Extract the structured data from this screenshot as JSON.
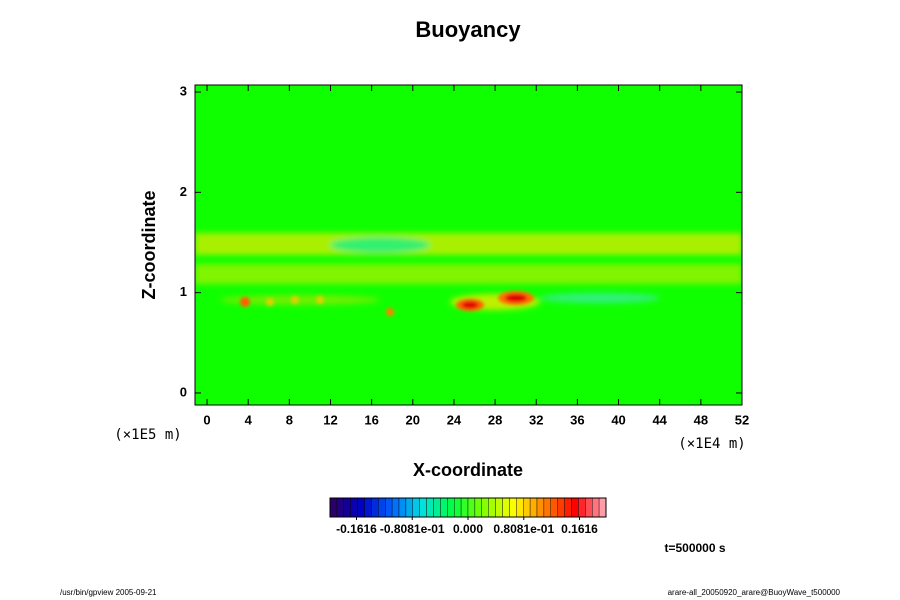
{
  "chart_data": {
    "type": "heatmap",
    "title": "Buoyancy",
    "x_label": "X-coordinate",
    "y_label": "Z-coordinate",
    "x_unit": "(×1E4 m)",
    "y_unit": "(×1E5 m)",
    "xlim": [
      -1.17,
      52
    ],
    "xticks": [
      0,
      4,
      8,
      12,
      16,
      20,
      24,
      28,
      32,
      36,
      40,
      44,
      48,
      52
    ],
    "ylim": [
      -0.12,
      3.07
    ],
    "yticks": [
      0,
      1,
      2,
      3
    ],
    "colorbar": {
      "lim": [
        -0.2,
        0.2
      ],
      "ticks": [
        {
          "value": -0.1616,
          "label": "-0.1616"
        },
        {
          "value": -0.08081,
          "label": "-0.8081e-01"
        },
        {
          "value": 0,
          "label": "0.000"
        },
        {
          "value": 0.08081,
          "label": "0.8081e-01"
        },
        {
          "value": 0.1616,
          "label": "0.1616"
        }
      ]
    },
    "time_label": "t=500000 s",
    "footer_left": "/usr/bin/gpview 2005-09-21",
    "footer_right": "arare-all_20050920_arare@BuoyWave_t500000"
  }
}
